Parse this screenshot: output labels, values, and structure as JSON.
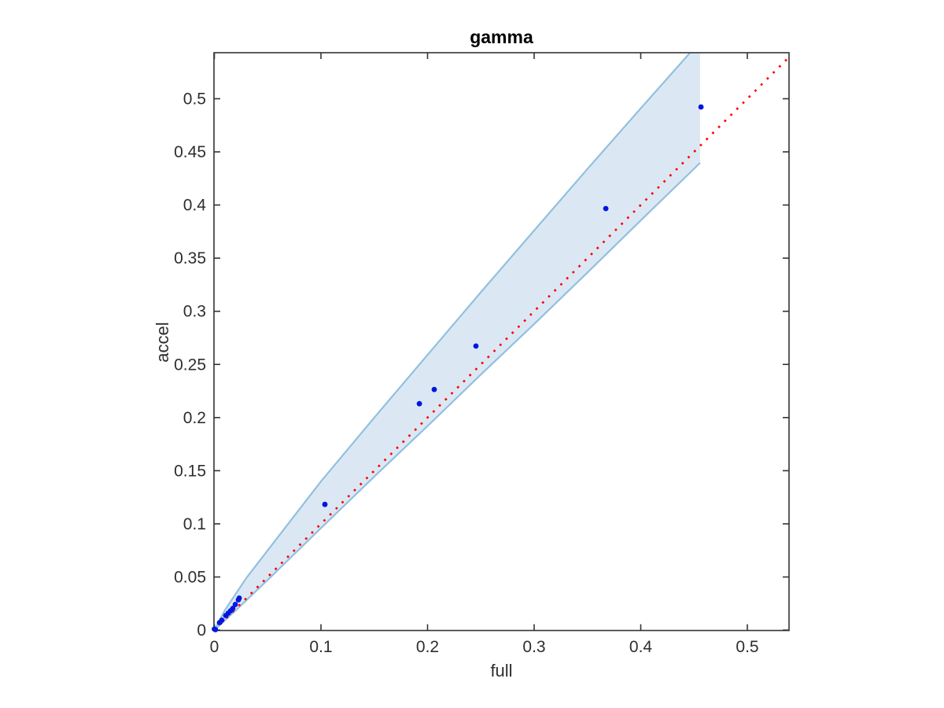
{
  "chart_data": {
    "type": "scatter",
    "title": "gamma",
    "xlabel": "full",
    "ylabel": "accel",
    "xlim": [
      0,
      0.539
    ],
    "ylim": [
      0,
      0.543
    ],
    "grid": false,
    "legend": null,
    "xticks": {
      "values": [
        0,
        0.1,
        0.2,
        0.3,
        0.4,
        0.5
      ],
      "labels": [
        "0",
        "0.1",
        "0.2",
        "0.3",
        "0.4",
        "0.5"
      ]
    },
    "yticks": {
      "values": [
        0,
        0.05,
        0.1,
        0.15,
        0.2,
        0.25,
        0.3,
        0.35,
        0.4,
        0.45,
        0.5
      ],
      "labels": [
        "0",
        "0.05",
        "0.1",
        "0.15",
        "0.2",
        "0.25",
        "0.3",
        "0.35",
        "0.4",
        "0.45",
        "0.5"
      ]
    },
    "identity_line": {
      "style": "dotted",
      "color": "#ff0000",
      "from": [
        0,
        0
      ],
      "to": [
        0.539,
        0.539
      ]
    },
    "confidence_band": {
      "fill_color": "#dbe8f4",
      "edge_color": "#92c0de",
      "upper_edge": [
        [
          0,
          0
        ],
        [
          0.01,
          0.019
        ],
        [
          0.03,
          0.049
        ],
        [
          0.06,
          0.088
        ],
        [
          0.1,
          0.14
        ],
        [
          0.15,
          0.2
        ],
        [
          0.2,
          0.259
        ],
        [
          0.25,
          0.318
        ],
        [
          0.3,
          0.376
        ],
        [
          0.35,
          0.434
        ],
        [
          0.4,
          0.491
        ],
        [
          0.446,
          0.5429
        ]
      ],
      "top_cut": [
        0.4557,
        0.5429
      ],
      "right_cut_bottom": [
        0.4557,
        0.4397
      ],
      "lower_edge": [
        [
          0,
          0
        ],
        [
          0.02,
          0.0185
        ],
        [
          0.05,
          0.0472
        ],
        [
          0.1,
          0.096
        ],
        [
          0.15,
          0.1445
        ],
        [
          0.2,
          0.192
        ],
        [
          0.25,
          0.2405
        ],
        [
          0.3,
          0.288
        ],
        [
          0.35,
          0.3365
        ],
        [
          0.4,
          0.3855
        ],
        [
          0.4557,
          0.4397
        ]
      ]
    },
    "points": {
      "color": "#0016e0",
      "marker": "dot",
      "data": [
        [
          0.0,
          0.001
        ],
        [
          0.001,
          0.0005
        ],
        [
          0.0048,
          0.007
        ],
        [
          0.007,
          0.0093
        ],
        [
          0.0107,
          0.0137
        ],
        [
          0.0129,
          0.0159
        ],
        [
          0.0151,
          0.0181
        ],
        [
          0.0173,
          0.0204
        ],
        [
          0.0196,
          0.0241
        ],
        [
          0.0225,
          0.0285
        ],
        [
          0.0233,
          0.0301
        ],
        [
          0.1037,
          0.1183
        ],
        [
          0.1923,
          0.213
        ],
        [
          0.2063,
          0.2264
        ],
        [
          0.2454,
          0.2673
        ],
        [
          0.3672,
          0.3967
        ],
        [
          0.4565,
          0.4922
        ]
      ]
    },
    "axis_color": "#333333",
    "tick_label_color": "#2e2e2e"
  }
}
